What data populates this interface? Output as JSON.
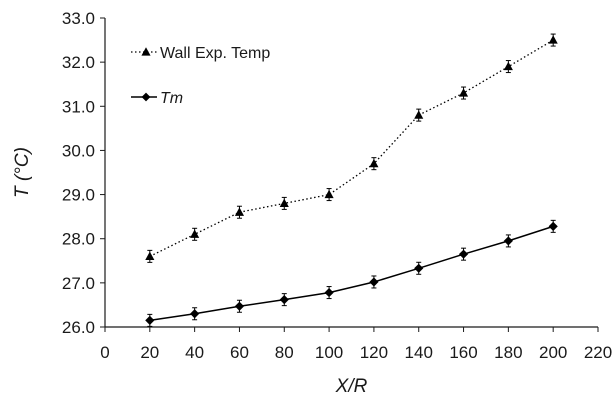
{
  "chart_data": {
    "type": "line",
    "xlabel": "X/R",
    "ylabel": "T (°C)",
    "xlim": [
      0,
      220
    ],
    "ylim": [
      26.0,
      33.0
    ],
    "x_ticks": [
      "0",
      "20",
      "40",
      "60",
      "80",
      "100",
      "120",
      "140",
      "160",
      "180",
      "200",
      "220"
    ],
    "y_ticks": [
      "26.0",
      "27.0",
      "28.0",
      "29.0",
      "30.0",
      "31.0",
      "32.0",
      "33.0"
    ],
    "grid": false,
    "legend_position": "top-left",
    "series": [
      {
        "name": "Wall Exp. Temp",
        "marker": "triangle",
        "line_style": "dotted",
        "color": "#000000",
        "x": [
          20,
          40,
          60,
          80,
          100,
          120,
          140,
          160,
          180,
          200
        ],
        "y": [
          27.6,
          28.1,
          28.6,
          28.8,
          29.0,
          29.7,
          30.8,
          31.3,
          31.9,
          32.5
        ]
      },
      {
        "name": "Tm",
        "marker": "diamond",
        "line_style": "solid",
        "color": "#000000",
        "x": [
          20,
          40,
          60,
          80,
          100,
          120,
          140,
          160,
          180,
          200
        ],
        "y": [
          26.15,
          26.3,
          26.47,
          26.62,
          26.78,
          27.02,
          27.33,
          27.65,
          27.95,
          28.28
        ]
      }
    ]
  }
}
